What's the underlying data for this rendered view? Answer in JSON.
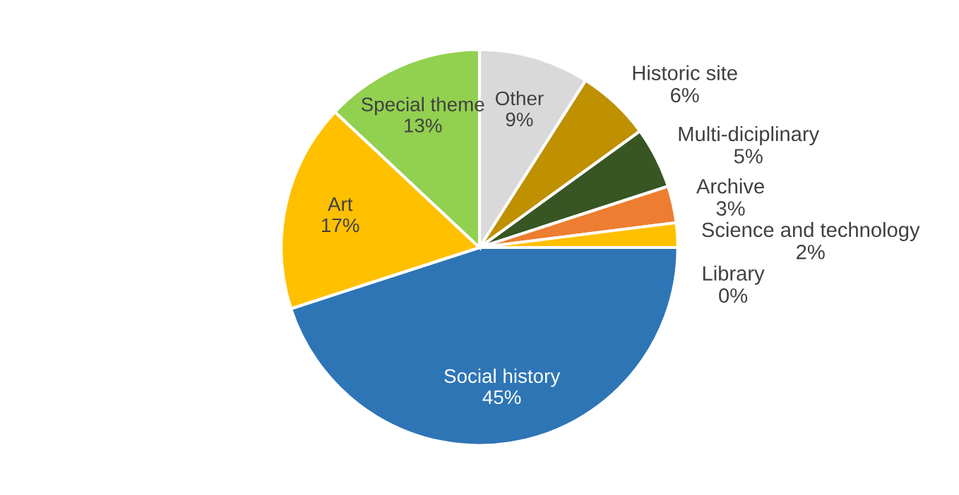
{
  "chart_data": {
    "type": "pie",
    "categories": [
      "Other",
      "Historic site",
      "Multi-diciplinary",
      "Archive",
      "Science and technology",
      "Library",
      "Social history",
      "Art",
      "Special theme"
    ],
    "values": [
      9,
      6,
      5,
      3,
      2,
      0,
      45,
      17,
      13
    ],
    "colors": [
      "#d9d9d9",
      "#bf9000",
      "#375623",
      "#ed7d31",
      "#ffc000",
      "#ff99cc",
      "#2e75b6",
      "#ffc000",
      "#92d050"
    ],
    "value_labels": [
      "9%",
      "6%",
      "5%",
      "3%",
      "2%",
      "0%",
      "45%",
      "17%",
      "13%"
    ],
    "legend": false
  }
}
